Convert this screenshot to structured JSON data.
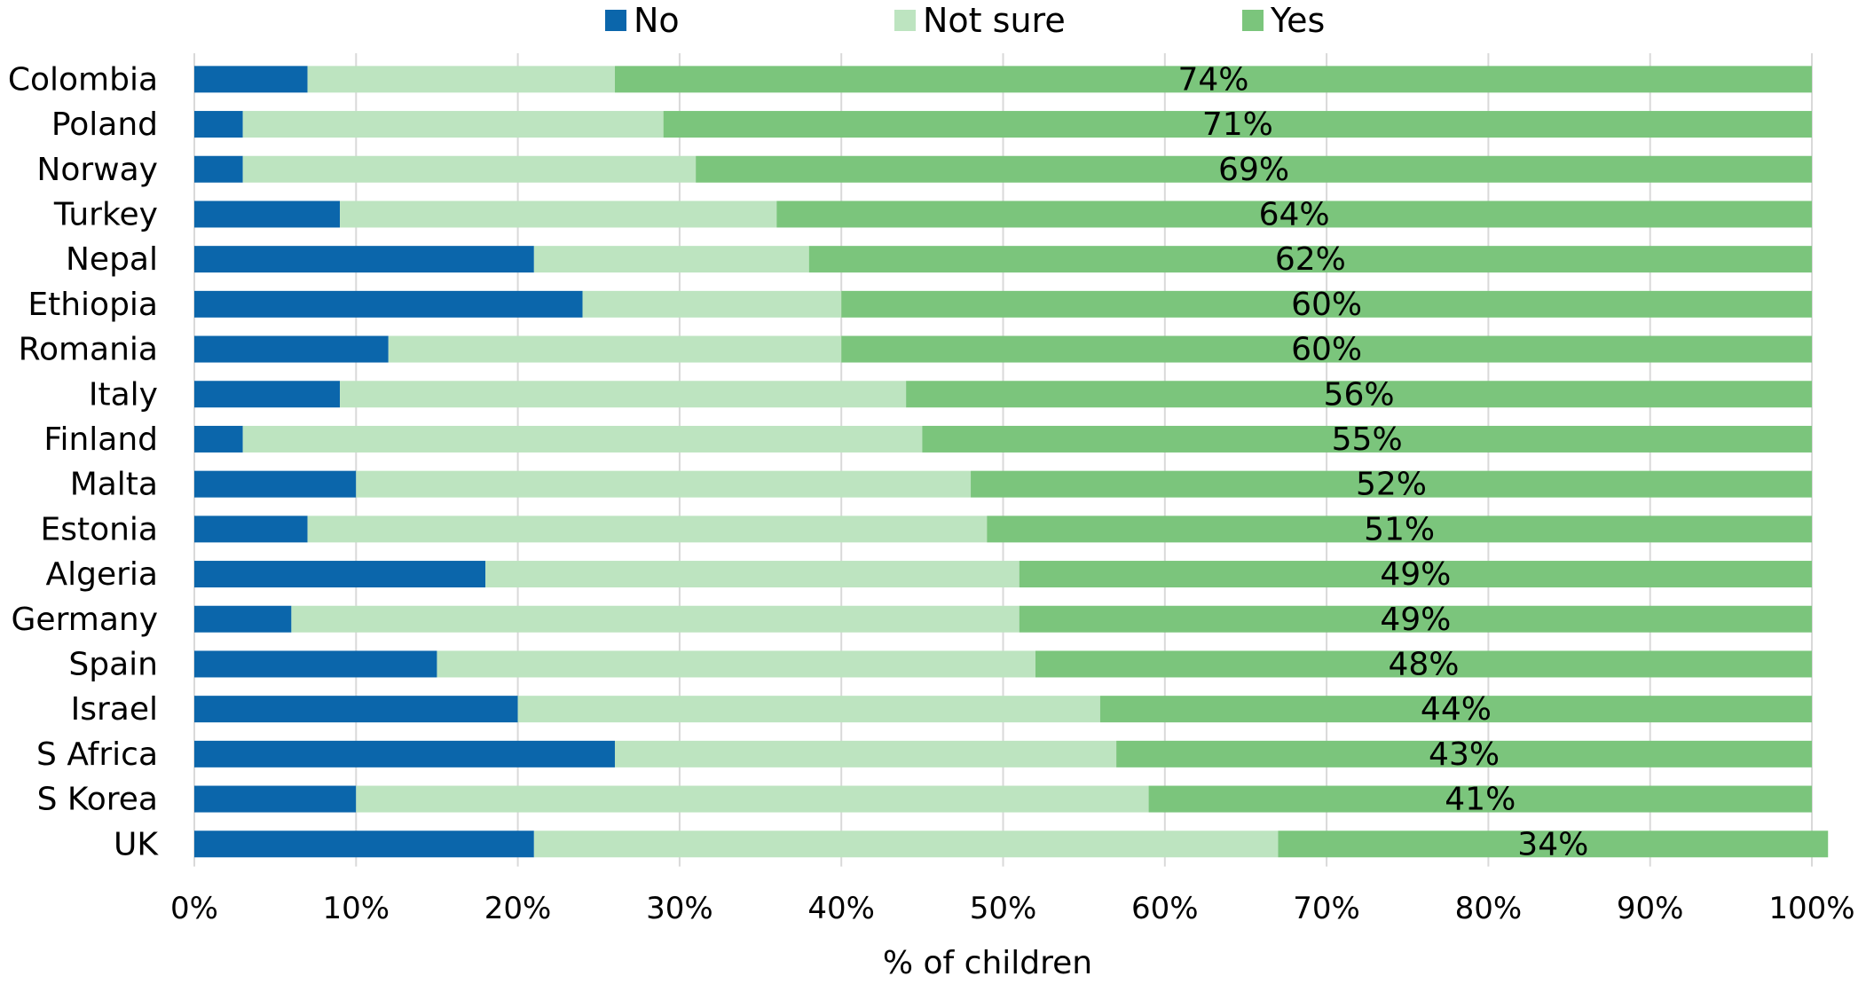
{
  "chart_data": {
    "type": "bar",
    "orientation": "horizontal",
    "stacked": "percent",
    "categories": [
      "Colombia",
      "Poland",
      "Norway",
      "Turkey",
      "Nepal",
      "Ethiopia",
      "Romania",
      "Italy",
      "Finland",
      "Malta",
      "Estonia",
      "Algeria",
      "Germany",
      "Spain",
      "Israel",
      "S Africa",
      "S Korea",
      "UK"
    ],
    "series": [
      {
        "name": "No",
        "color": "#0b66ab",
        "values": [
          7,
          3,
          3,
          9,
          21,
          24,
          12,
          9,
          3,
          10,
          7,
          18,
          6,
          15,
          20,
          26,
          10,
          21
        ]
      },
      {
        "name": "Not sure",
        "color": "#bde4c0",
        "values": [
          19,
          26,
          28,
          27,
          17,
          16,
          28,
          35,
          42,
          38,
          42,
          33,
          45,
          37,
          36,
          31,
          49,
          46
        ]
      },
      {
        "name": "Yes",
        "color": "#7bc57c",
        "values": [
          74,
          71,
          69,
          64,
          62,
          60,
          60,
          56,
          55,
          52,
          51,
          49,
          49,
          48,
          44,
          43,
          41,
          34
        ]
      }
    ],
    "data_labels": [
      "74%",
      "71%",
      "69%",
      "64%",
      "62%",
      "60%",
      "60%",
      "56%",
      "55%",
      "52%",
      "51%",
      "49%",
      "49%",
      "48%",
      "44%",
      "43%",
      "41%",
      "34%"
    ],
    "x_ticks": [
      "0%",
      "10%",
      "20%",
      "30%",
      "40%",
      "50%",
      "60%",
      "70%",
      "80%",
      "90%",
      "100%"
    ],
    "xlim": [
      0,
      100
    ],
    "xlabel": "% of children",
    "grid": true,
    "legend_position": "top"
  }
}
